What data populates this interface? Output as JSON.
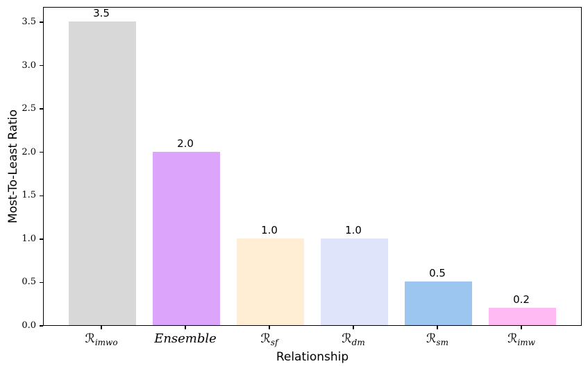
{
  "chart_data": {
    "type": "bar",
    "title": "",
    "xlabel": "Relationship",
    "ylabel": "Most-To-Least Ratio",
    "categories": [
      {
        "base": "ℛ",
        "sub": "imwo",
        "base_italic": false
      },
      {
        "base": "Ensemble",
        "sub": "",
        "base_italic": true
      },
      {
        "base": "ℛ",
        "sub": "sf",
        "base_italic": false
      },
      {
        "base": "ℛ",
        "sub": "dm",
        "base_italic": false
      },
      {
        "base": "ℛ",
        "sub": "sm",
        "base_italic": false
      },
      {
        "base": "ℛ",
        "sub": "imw",
        "base_italic": false
      }
    ],
    "values": [
      3.5,
      2.0,
      1.0,
      1.0,
      0.5,
      0.2
    ],
    "value_labels": [
      "3.5",
      "2.0",
      "1.0",
      "1.0",
      "0.5",
      "0.2"
    ],
    "bar_colors": [
      "#d8d8d8",
      "#dda4fb",
      "#ffeed3",
      "#e0e4fb",
      "#9cc6f0",
      "#ffb9f3"
    ],
    "yticks": [
      "0.0",
      "0.5",
      "1.0",
      "1.5",
      "2.0",
      "2.5",
      "3.0",
      "3.5"
    ],
    "ylim": [
      0,
      3.676
    ],
    "grid": false,
    "legend": null,
    "colors": {
      "spine": "#000000",
      "background": "#ffffff",
      "text": "#000000"
    }
  }
}
